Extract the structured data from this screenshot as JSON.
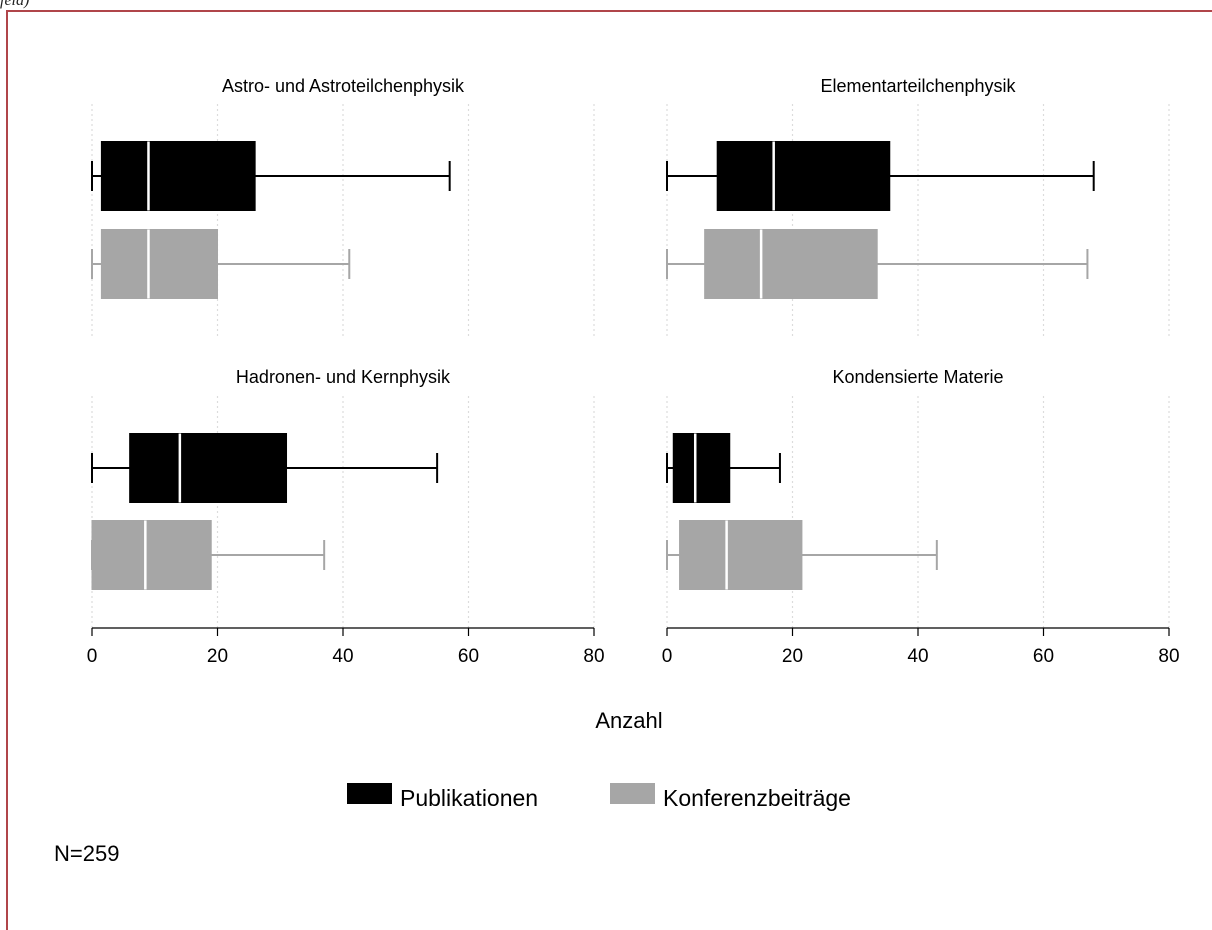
{
  "caption_fragment": "feld)",
  "chart_data": {
    "type": "box",
    "xlabel": "Anzahl",
    "xlim": [
      0,
      80
    ],
    "xticks": [
      0,
      20,
      40,
      60,
      80
    ],
    "grid": true,
    "legend_position": "bottom",
    "note": "N=259",
    "series": [
      {
        "name": "Publikationen",
        "color": "#000000",
        "median_color": "#ffffff"
      },
      {
        "name": "Konferenzbeiträge",
        "color": "#a6a6a6",
        "median_color": "#ffffff"
      }
    ],
    "panels": [
      {
        "title": "Astro- und Astroteilchenphysik",
        "boxes": [
          {
            "series": "Publikationen",
            "min": 0,
            "q1": 1.5,
            "median": 9,
            "q3": 26,
            "max": 57
          },
          {
            "series": "Konferenzbeiträge",
            "min": 0,
            "q1": 1.5,
            "median": 9,
            "q3": 20,
            "max": 41
          }
        ]
      },
      {
        "title": "Elementarteilchenphysik",
        "boxes": [
          {
            "series": "Publikationen",
            "min": 0,
            "q1": 8,
            "median": 17,
            "q3": 35.5,
            "max": 68
          },
          {
            "series": "Konferenzbeiträge",
            "min": 0,
            "q1": 6,
            "median": 15,
            "q3": 33.5,
            "max": 67
          }
        ]
      },
      {
        "title": "Hadronen- und Kernphysik",
        "boxes": [
          {
            "series": "Publikationen",
            "min": 0,
            "q1": 6,
            "median": 14,
            "q3": 31,
            "max": 55
          },
          {
            "series": "Konferenzbeiträge",
            "min": 0,
            "q1": 0,
            "median": 8.5,
            "q3": 19,
            "max": 37
          }
        ]
      },
      {
        "title": "Kondensierte Materie",
        "boxes": [
          {
            "series": "Publikationen",
            "min": 0,
            "q1": 1,
            "median": 4.5,
            "q3": 10,
            "max": 18
          },
          {
            "series": "Konferenzbeiträge",
            "min": 0,
            "q1": 2,
            "median": 9.5,
            "q3": 21.5,
            "max": 43
          }
        ]
      }
    ]
  }
}
